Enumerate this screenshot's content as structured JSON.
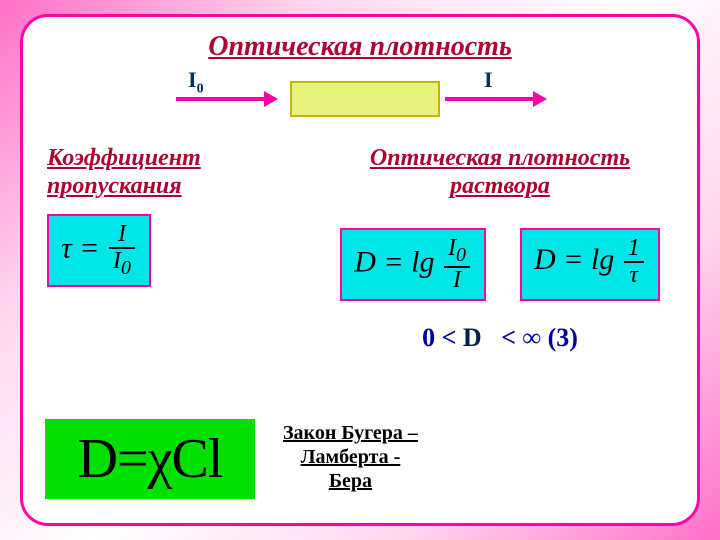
{
  "title": "Оптическая плотность",
  "diagram": {
    "I0": "I",
    "I0_sub": "0",
    "I": "I"
  },
  "left": {
    "heading_l1": "Коэффициент",
    "heading_l2": "пропускания",
    "tau_lhs": "τ =",
    "tau_num": "I",
    "tau_den_base": "I",
    "tau_den_sub": "0"
  },
  "right": {
    "heading_l1": "Оптическая плотность",
    "heading_l2": "раствора",
    "d1_lhs": "D = lg",
    "d1_num_base": "I",
    "d1_num_sub": "0",
    "d1_den": "I",
    "d2_lhs": "D = lg",
    "d2_num": "1",
    "d2_den": "τ"
  },
  "range": {
    "zero": "0",
    "lt1": "<",
    "dvar": "D",
    "lt2": "<",
    "inf": "∞",
    "tag": "(3)"
  },
  "bigD": "D=χCl",
  "law_l1": "Закон Бугера –",
  "law_l2": "Ламберта -",
  "law_l3": "Бера",
  "colors": {
    "accent": "#ff00aa",
    "title": "#b00030",
    "formula_bg": "#00e5e5",
    "bigD_bg": "#00e000",
    "sample_bg": "#e6f27a",
    "range_text": "#0000a0"
  }
}
